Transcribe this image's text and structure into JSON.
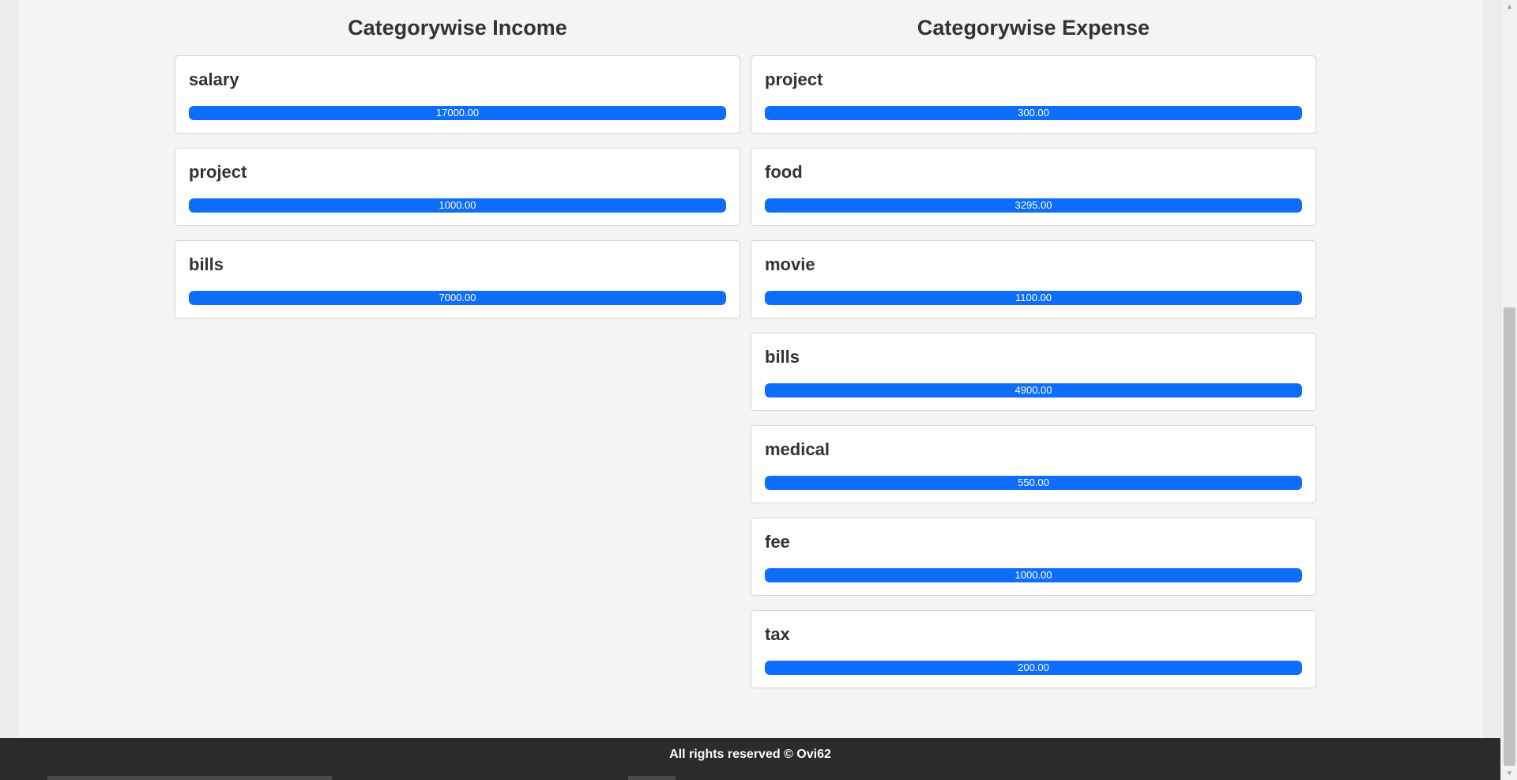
{
  "income": {
    "title": "Categorywise Income",
    "categories": [
      {
        "name": "salary",
        "amount": "17000.00",
        "fill_percent": 100
      },
      {
        "name": "project",
        "amount": "1000.00",
        "fill_percent": 100
      },
      {
        "name": "bills",
        "amount": "7000.00",
        "fill_percent": 100
      }
    ]
  },
  "expense": {
    "title": "Categorywise Expense",
    "categories": [
      {
        "name": "project",
        "amount": "300.00",
        "fill_percent": 100
      },
      {
        "name": "food",
        "amount": "3295.00",
        "fill_percent": 100
      },
      {
        "name": "movie",
        "amount": "1100.00",
        "fill_percent": 100
      },
      {
        "name": "bills",
        "amount": "4900.00",
        "fill_percent": 100
      },
      {
        "name": "medical",
        "amount": "550.00",
        "fill_percent": 100
      },
      {
        "name": "fee",
        "amount": "1000.00",
        "fill_percent": 100
      },
      {
        "name": "tax",
        "amount": "200.00",
        "fill_percent": 100
      }
    ]
  },
  "footer": {
    "text": "All rights reserved © Ovi62"
  },
  "colors": {
    "bar": "#0d6efd",
    "footer_bg": "#2b2b2b"
  }
}
